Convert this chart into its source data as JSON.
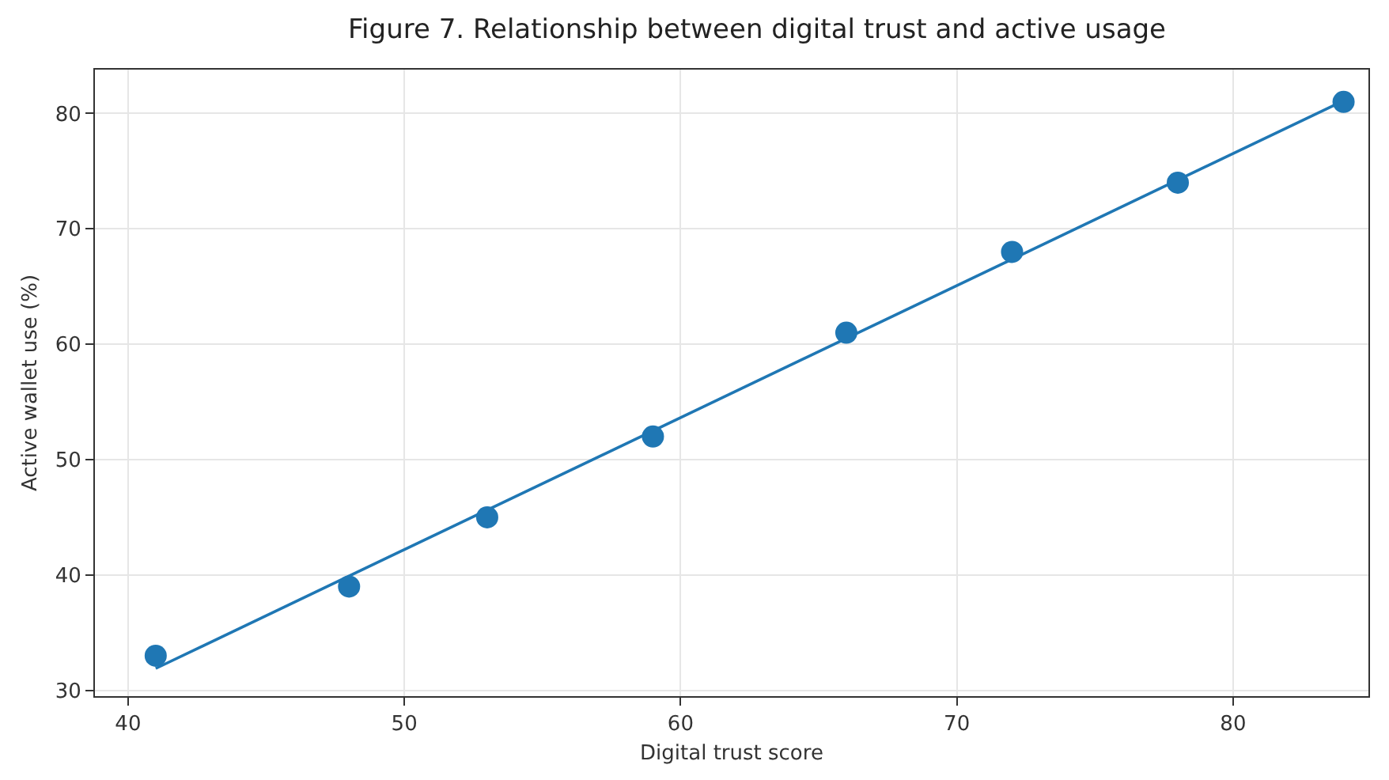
{
  "chart_data": {
    "type": "scatter",
    "title": "Figure 7. Relationship between digital trust and active usage",
    "xlabel": "Digital trust score",
    "ylabel": "Active wallet use (%)",
    "x": [
      41,
      48,
      53,
      59,
      66,
      72,
      78,
      84
    ],
    "series": [
      {
        "color": "#1f77b4",
        "values": [
          33,
          39,
          45,
          52,
          61,
          68,
          74,
          81
        ],
        "marker": "circle"
      },
      {
        "type": "line",
        "color": "#1f77b4",
        "x": [
          41,
          84
        ],
        "values": [
          31.9,
          81.1
        ],
        "marker": "none",
        "line_style": "solid"
      }
    ],
    "xlim": [
      38.8,
      84.9
    ],
    "xticks": [
      40,
      50,
      60,
      70,
      80
    ],
    "ylim": [
      29.5,
      83.8
    ],
    "yticks": [
      30,
      40,
      50,
      60,
      70,
      80
    ],
    "grid": true
  }
}
